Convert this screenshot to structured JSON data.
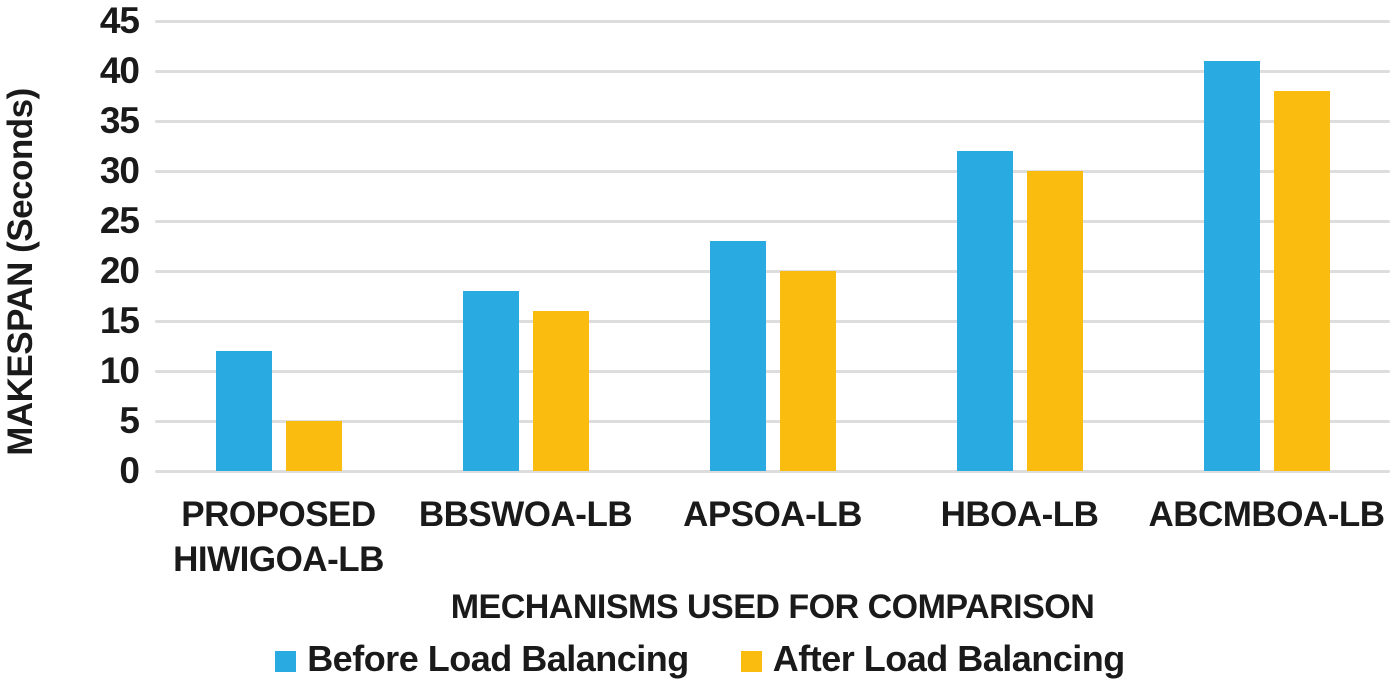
{
  "chart_data": {
    "type": "bar",
    "title": "",
    "xlabel": "MECHANISMS USED FOR COMPARISON",
    "ylabel": "MAKESPAN (Seconds)",
    "categories": [
      "PROPOSED HIWIGOA-LB",
      "BBSWOA-LB",
      "APSOA-LB",
      "HBOA-LB",
      "ABCMBOA-LB"
    ],
    "categories_multiline": [
      [
        "PROPOSED",
        "HIWIGOA-LB"
      ],
      [
        "BBSWOA-LB"
      ],
      [
        "APSOA-LB"
      ],
      [
        "HBOA-LB"
      ],
      [
        "ABCMBOA-LB"
      ]
    ],
    "series": [
      {
        "name": "Before Load Balancing",
        "color": "#29ABE2",
        "values": [
          12,
          18,
          23,
          32,
          41
        ]
      },
      {
        "name": "After Load Balancing",
        "color": "#FBBC10",
        "values": [
          5,
          16,
          20,
          30,
          38
        ]
      }
    ],
    "ylim": [
      0,
      45
    ],
    "ytick_step": 5,
    "yticks": [
      0,
      5,
      10,
      15,
      20,
      25,
      30,
      35,
      40,
      45
    ],
    "grid": "horizontal",
    "gridline_color": "#DDDDDD",
    "legend_position": "bottom",
    "text_color": "#1A1A1A",
    "background_color": "#FFFFFF"
  }
}
